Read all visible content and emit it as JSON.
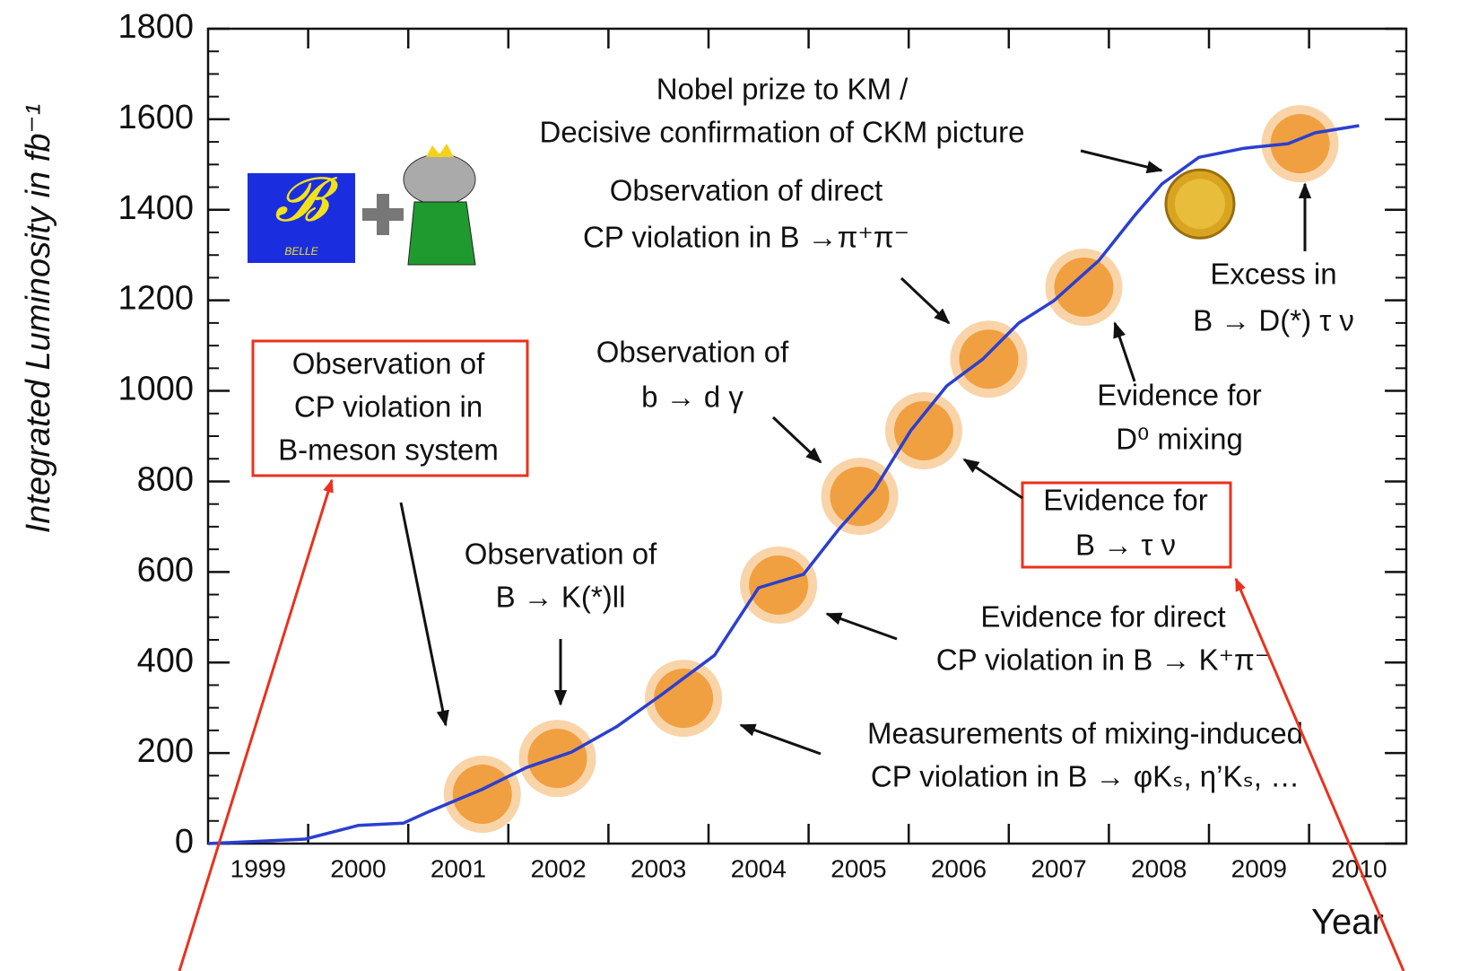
{
  "chart_data": {
    "type": "line",
    "ylabel": "Integrated Luminosity in fb⁻¹",
    "xlabel": "Year",
    "logo_text": "BELLE",
    "xlim": [
      1999,
      2011
    ],
    "ylim": [
      0,
      1800
    ],
    "xticks": [
      1999,
      2000,
      2001,
      2002,
      2003,
      2004,
      2005,
      2006,
      2007,
      2008,
      2009,
      2010
    ],
    "yticks": [
      0,
      200,
      400,
      600,
      800,
      1000,
      1200,
      1400,
      1600,
      1800
    ],
    "series": [
      {
        "color": "#2b3fd0",
        "x": [
          1999.0,
          1999.97,
          2000.5,
          2000.95,
          2001.2,
          2001.73,
          2002.18,
          2002.63,
          2003.08,
          2003.52,
          2004.06,
          2004.5,
          2004.95,
          2005.3,
          2005.66,
          2006.02,
          2006.38,
          2006.74,
          2007.1,
          2007.45,
          2007.9,
          2008.26,
          2008.53,
          2008.9,
          2009.35,
          2009.79,
          2010.06,
          2010.5
        ],
        "values": [
          0,
          10,
          40,
          45,
          70,
          119,
          168,
          202,
          258,
          327,
          416,
          565,
          595,
          694,
          783,
          912,
          1011,
          1070,
          1150,
          1199,
          1288,
          1388,
          1457,
          1516,
          1536,
          1546,
          1570,
          1586
        ]
      }
    ],
    "milestones": {
      "color": "#f0a040",
      "x": [
        2001.74,
        2002.49,
        2003.75,
        2004.7,
        2005.51,
        2006.15,
        2006.8,
        2007.75,
        2009.91
      ],
      "values": [
        109,
        188,
        321,
        571,
        767,
        912,
        1070,
        1229,
        1546
      ]
    },
    "nobel": {
      "x": 2008.91,
      "value": 1413
    },
    "annotations": [
      [
        "Nobel prize to KM /",
        "Decisive confirmation of CKM picture"
      ],
      [
        "Observation of direct",
        "CP violation in B →π⁺π⁻"
      ],
      [
        "Observation of",
        "b → d γ"
      ],
      [
        "Observation of",
        "B → K(*)ll"
      ],
      [
        "Observation of",
        "CP violation in",
        "B-meson system"
      ],
      [
        "Excess in",
        "B → D(*) τ ν"
      ],
      [
        "Evidence for",
        "D⁰ mixing"
      ],
      [
        "Evidence for",
        "B → τ ν"
      ],
      [
        "Evidence for direct",
        "CP violation in B → K⁺π⁻"
      ],
      [
        "Measurements of mixing-induced",
        "CP violation in B → φKₛ, η’Kₛ, …"
      ]
    ]
  }
}
